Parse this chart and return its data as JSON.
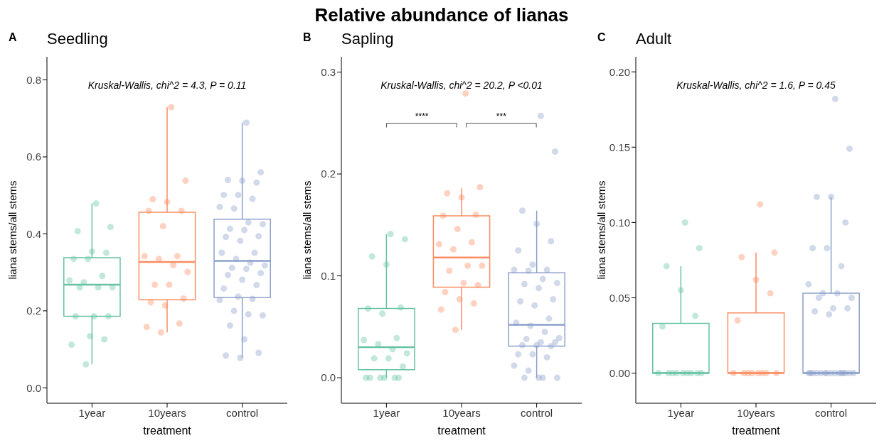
{
  "chart_data": [
    {
      "type": "box",
      "subtitle": "Seedling",
      "xlabel": "treatment",
      "ylabel": "liana stems/all stems",
      "categories": [
        "1year",
        "10years",
        "control"
      ],
      "colors": [
        "#66c2a5",
        "#fc8d62",
        "#8da0cb"
      ],
      "boxes": [
        {
          "low": 0.061,
          "q1": 0.186,
          "median": 0.268,
          "q3": 0.338,
          "high": 0.479
        },
        {
          "low": 0.144,
          "q1": 0.229,
          "median": 0.327,
          "q3": 0.456,
          "high": 0.729
        },
        {
          "low": 0.078,
          "q1": 0.235,
          "median": 0.33,
          "q3": 0.438,
          "high": 0.689
        }
      ],
      "series": [
        {
          "type": "scatter",
          "color": "#66c2a5",
          "x": [
            "1year",
            "1year",
            "1year",
            "1year",
            "1year",
            "1year",
            "1year",
            "1year",
            "1year",
            "1year",
            "1year",
            "1year",
            "1year",
            "1year",
            "1year",
            "1year",
            "1year",
            "1year",
            "1year",
            "1year"
          ],
          "values": [
            0.479,
            0.418,
            0.407,
            0.354,
            0.351,
            0.335,
            0.335,
            0.291,
            0.279,
            0.274,
            0.261,
            0.261,
            0.261,
            0.186,
            0.186,
            0.186,
            0.134,
            0.126,
            0.112,
            0.061
          ]
        },
        {
          "type": "scatter",
          "color": "#fc8d62",
          "x": [
            "10years",
            "10years",
            "10years",
            "10years",
            "10years",
            "10years",
            "10years",
            "10years",
            "10years",
            "10years",
            "10years",
            "10years",
            "10years",
            "10years",
            "10years",
            "10years",
            "10years",
            "10years",
            "10years",
            "10years"
          ],
          "values": [
            0.729,
            0.538,
            0.49,
            0.483,
            0.46,
            0.46,
            0.42,
            0.342,
            0.342,
            0.335,
            0.319,
            0.301,
            0.268,
            0.268,
            0.232,
            0.222,
            0.214,
            0.167,
            0.158,
            0.144
          ]
        },
        {
          "type": "scatter",
          "color": "#8da0cb",
          "x": [
            "control",
            "control",
            "control",
            "control",
            "control",
            "control",
            "control",
            "control",
            "control",
            "control",
            "control",
            "control",
            "control",
            "control",
            "control",
            "control",
            "control",
            "control",
            "control",
            "control",
            "control",
            "control",
            "control",
            "control",
            "control",
            "control",
            "control",
            "control",
            "control",
            "control",
            "control",
            "control",
            "control",
            "control",
            "control",
            "control",
            "control",
            "control",
            "control",
            "control"
          ],
          "values": [
            0.689,
            0.56,
            0.54,
            0.538,
            0.533,
            0.501,
            0.501,
            0.491,
            0.47,
            0.466,
            0.43,
            0.425,
            0.413,
            0.41,
            0.394,
            0.392,
            0.382,
            0.351,
            0.351,
            0.335,
            0.325,
            0.318,
            0.312,
            0.309,
            0.298,
            0.293,
            0.281,
            0.267,
            0.258,
            0.237,
            0.231,
            0.228,
            0.2,
            0.191,
            0.188,
            0.162,
            0.126,
            0.091,
            0.084,
            0.078
          ]
        }
      ],
      "ylim": [
        -0.04,
        0.86
      ],
      "yticks": [
        {
          "value": 0,
          "label": "0.0"
        },
        {
          "value": 0.2,
          "label": "0.2"
        },
        {
          "value": 0.4,
          "label": "0.4"
        },
        {
          "value": 0.6,
          "label": "0.6"
        },
        {
          "value": 0.8,
          "label": "0.8"
        }
      ],
      "annotations": [
        "A",
        "Kruskal-Wallis, chi^2 = 4.3, P = 0.11"
      ]
    },
    {
      "type": "box",
      "title": "Relative abundance of lianas",
      "subtitle": "Sapling",
      "xlabel": "treatment",
      "ylabel": "liana stems/all stems",
      "categories": [
        "1year",
        "10years",
        "control"
      ],
      "colors": [
        "#66c2a5",
        "#fc8d62",
        "#8da0cb"
      ],
      "boxes": [
        {
          "low": 0,
          "q1": 0.008,
          "median": 0.03,
          "q3": 0.068,
          "high": 0.141
        },
        {
          "low": 0.047,
          "q1": 0.089,
          "median": 0.118,
          "q3": 0.159,
          "high": 0.186
        },
        {
          "low": 0,
          "q1": 0.031,
          "median": 0.052,
          "q3": 0.103,
          "high": 0.164
        }
      ],
      "series": [
        {
          "type": "scatter",
          "color": "#66c2a5",
          "x": [
            "1year",
            "1year",
            "1year",
            "1year",
            "1year",
            "1year",
            "1year",
            "1year",
            "1year",
            "1year",
            "1year",
            "1year",
            "1year",
            "1year",
            "1year",
            "1year",
            "1year",
            "1year",
            "1year",
            "1year",
            "1year"
          ],
          "values": [
            0.141,
            0.136,
            0.119,
            0.111,
            0.069,
            0.068,
            0.063,
            0.039,
            0.037,
            0.033,
            0.028,
            0.024,
            0.019,
            0.019,
            0.011,
            0,
            0,
            0,
            0,
            0,
            0
          ]
        },
        {
          "type": "scatter",
          "color": "#fc8d62",
          "x": [
            "10years",
            "10years",
            "10years",
            "10years",
            "10years",
            "10years",
            "10years",
            "10years",
            "10years",
            "10years",
            "10years",
            "10years",
            "10years",
            "10years",
            "10years",
            "10years",
            "10years",
            "10years",
            "10years",
            "10years"
          ],
          "values": [
            0.279,
            0.187,
            0.181,
            0.177,
            0.16,
            0.159,
            0.146,
            0.133,
            0.131,
            0.126,
            0.11,
            0.11,
            0.105,
            0.093,
            0.091,
            0.084,
            0.077,
            0.073,
            0.067,
            0.047
          ]
        },
        {
          "type": "scatter",
          "color": "#8da0cb",
          "x": [
            "control",
            "control",
            "control",
            "control",
            "control",
            "control",
            "control",
            "control",
            "control",
            "control",
            "control",
            "control",
            "control",
            "control",
            "control",
            "control",
            "control",
            "control",
            "control",
            "control",
            "control",
            "control",
            "control",
            "control",
            "control",
            "control",
            "control",
            "control",
            "control",
            "control",
            "control",
            "control",
            "control",
            "control",
            "control",
            "control",
            "control"
          ],
          "values": [
            0.257,
            0.222,
            0.164,
            0.151,
            0.134,
            0.125,
            0.111,
            0.106,
            0.106,
            0.105,
            0.097,
            0.093,
            0.092,
            0.088,
            0.077,
            0.075,
            0.071,
            0.058,
            0.054,
            0.051,
            0.045,
            0.039,
            0.038,
            0.035,
            0.035,
            0.032,
            0.032,
            0.031,
            0.023,
            0.023,
            0.02,
            0.012,
            0.007,
            0,
            0,
            0,
            0
          ]
        }
      ],
      "ylim": [
        -0.025,
        0.315
      ],
      "yticks": [
        {
          "value": 0,
          "label": "0.0"
        },
        {
          "value": 0.1,
          "label": "0.1"
        },
        {
          "value": 0.2,
          "label": "0.2"
        },
        {
          "value": 0.3,
          "label": "0.3"
        }
      ],
      "annotations": [
        "B",
        "Kruskal-Wallis, chi^2 = 20.2, P <0.01",
        "****",
        "***"
      ]
    },
    {
      "type": "box",
      "subtitle": "Adult",
      "xlabel": "treatment",
      "ylabel": "liana stems/all stems",
      "categories": [
        "1year",
        "10years",
        "control"
      ],
      "colors": [
        "#66c2a5",
        "#fc8d62",
        "#8da0cb"
      ],
      "boxes": [
        {
          "low": 0,
          "q1": 0,
          "median": 0,
          "q3": 0.033,
          "high": 0.071
        },
        {
          "low": 0,
          "q1": 0,
          "median": 0,
          "q3": 0.04,
          "high": 0.08
        },
        {
          "low": 0,
          "q1": 0,
          "median": 0,
          "q3": 0.053,
          "high": 0.117
        }
      ],
      "series": [
        {
          "type": "scatter",
          "color": "#66c2a5",
          "x": [
            "1year",
            "1year",
            "1year",
            "1year",
            "1year",
            "1year",
            "1year",
            "1year",
            "1year",
            "1year",
            "1year",
            "1year",
            "1year",
            "1year",
            "1year"
          ],
          "values": [
            0.1,
            0.083,
            0.071,
            0.055,
            0.038,
            0.031,
            0,
            0,
            0,
            0,
            0,
            0,
            0,
            0,
            0
          ]
        },
        {
          "type": "scatter",
          "color": "#fc8d62",
          "x": [
            "10years",
            "10years",
            "10years",
            "10years",
            "10years",
            "10years",
            "10years",
            "10years",
            "10years",
            "10years",
            "10years",
            "10years",
            "10years",
            "10years"
          ],
          "values": [
            0.112,
            0.08,
            0.077,
            0.062,
            0.053,
            0.035,
            0,
            0,
            0,
            0,
            0,
            0,
            0,
            0
          ]
        },
        {
          "type": "scatter",
          "color": "#8da0cb",
          "x": [
            "control",
            "control",
            "control",
            "control",
            "control",
            "control",
            "control",
            "control",
            "control",
            "control",
            "control",
            "control",
            "control",
            "control",
            "control",
            "control",
            "control",
            "control",
            "control",
            "control",
            "control",
            "control",
            "control",
            "control",
            "control",
            "control",
            "control",
            "control",
            "control",
            "control",
            "control",
            "control"
          ],
          "values": [
            0.182,
            0.149,
            0.117,
            0.117,
            0.1,
            0.083,
            0.083,
            0.071,
            0.059,
            0.053,
            0.053,
            0.05,
            0.05,
            0.043,
            0.043,
            0.041,
            0.039,
            0,
            0,
            0,
            0,
            0,
            0,
            0,
            0,
            0,
            0,
            0,
            0,
            0,
            0,
            0
          ]
        }
      ],
      "ylim": [
        -0.02,
        0.21
      ],
      "yticks": [
        {
          "value": 0,
          "label": "0.00"
        },
        {
          "value": 0.05,
          "label": "0.05"
        },
        {
          "value": 0.1,
          "label": "0.10"
        },
        {
          "value": 0.15,
          "label": "0.15"
        },
        {
          "value": 0.2,
          "label": "0.20"
        }
      ],
      "annotations": [
        "C",
        "Kruskal-Wallis, chi^2 = 1.6, P = 0.45"
      ]
    }
  ]
}
